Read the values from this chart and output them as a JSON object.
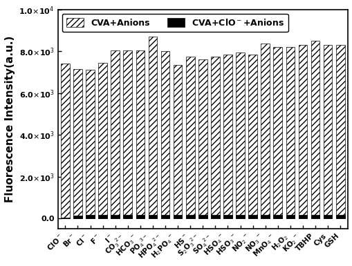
{
  "categories": [
    "ClO$^-$",
    "Br$^-$",
    "Cl$^-$",
    "F$^-$",
    "I$^-$",
    "CO$_3$$^{2-}$",
    "HCO$_3$$^-$",
    "PO$_4$$^{3-}$",
    "HPO$_4$$^{2-}$",
    "H$_2$PO$_4$$^-$",
    "HS$^-$",
    "S$_2$O$_3$$^{2-}$",
    "SO$_4$$^{2-}$",
    "HSO$_4$$^-$",
    "HSO$_3$$^-$",
    "NO$_2$$^-$",
    "NO$_3$$^-$",
    "MnO$_4$$^-$",
    "H$_2$O$_2$",
    "KO$_2$$^-$",
    "TBHP",
    "Cys",
    "GSH"
  ],
  "values_cva": [
    7400,
    7150,
    7100,
    7450,
    8050,
    8050,
    8050,
    8700,
    8000,
    7350,
    7750,
    7600,
    7750,
    7850,
    7950,
    7850,
    8350,
    8200,
    8200,
    8300,
    8500,
    8300,
    8300
  ],
  "values_clo": [
    50,
    150,
    180,
    180,
    180,
    180,
    180,
    180,
    180,
    180,
    180,
    180,
    180,
    180,
    180,
    180,
    180,
    180,
    180,
    180,
    180,
    180,
    180
  ],
  "bar_width": 0.7,
  "hatch_color": "#000000",
  "hatch_pattern": "////",
  "cva_face_color": "#ffffff",
  "clo_face_color": "#000000",
  "ylabel": "Fluorescence Intensity(a.u.)",
  "ylim": [
    -500,
    10000
  ],
  "yticks": [
    0,
    2000,
    4000,
    6000,
    8000,
    10000
  ],
  "legend_label_cva": "CVA+Anions",
  "legend_label_clo": "CVA+ClO$^-$+Anions",
  "background_color": "#ffffff",
  "tick_fontsize": 8,
  "label_fontsize": 11
}
